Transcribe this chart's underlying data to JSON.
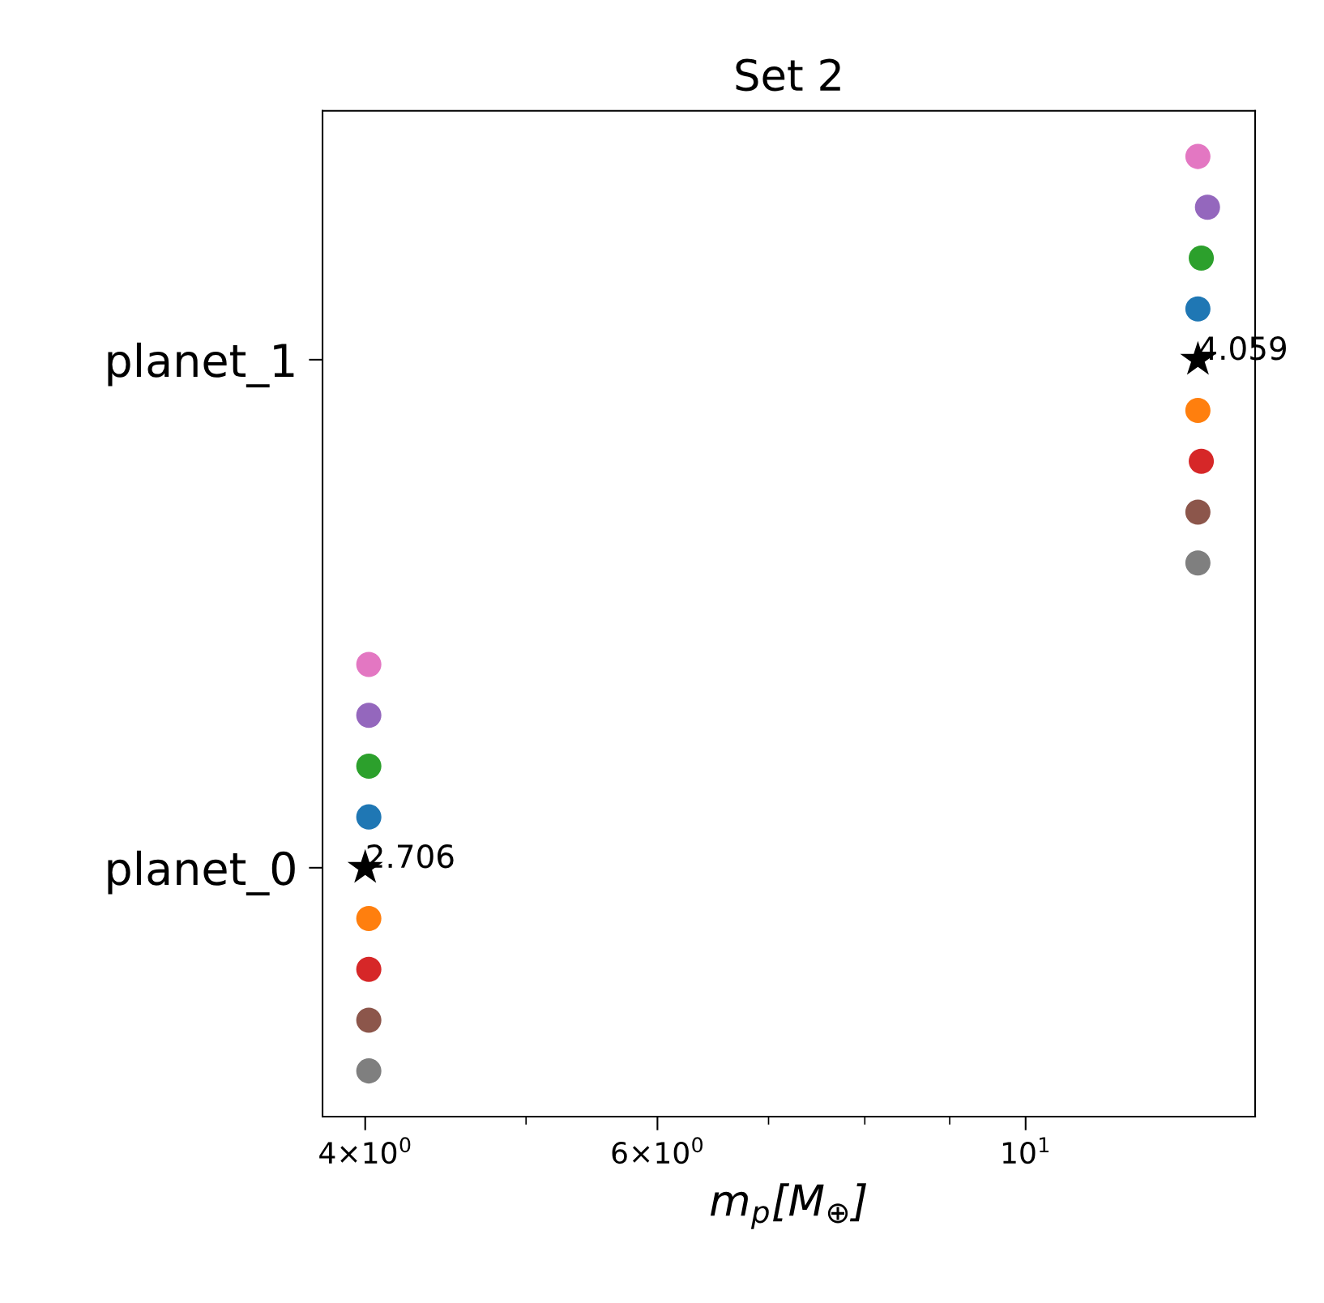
{
  "chart_data": {
    "type": "scatter",
    "title": "Set 2",
    "xlabel": "m$_{p}$[M$_{⊕}$]",
    "log": "x",
    "xlim": [
      3.77,
      13.75
    ],
    "xticks": [
      {
        "value": 4,
        "label": "4×10$^{0}$"
      },
      {
        "value": 6,
        "label": "6×10$^{0}$"
      },
      {
        "value": 10,
        "label": "10$^{1}$"
      }
    ],
    "ylim": [
      -0.49,
      1.49
    ],
    "yticks": [
      {
        "value": 0,
        "label": "planet_0"
      },
      {
        "value": 1,
        "label": "planet_1"
      }
    ],
    "grid": false,
    "legend": false,
    "series": [
      {
        "color": "#e377c2",
        "marker": "circle",
        "x": [
          4.02,
          12.7
        ],
        "values": [
          0.4,
          1.4
        ]
      },
      {
        "color": "#9467bd",
        "marker": "circle",
        "x": [
          4.02,
          12.87
        ],
        "values": [
          0.3,
          1.3
        ]
      },
      {
        "color": "#2ca02c",
        "marker": "circle",
        "x": [
          4.02,
          12.76
        ],
        "values": [
          0.2,
          1.2
        ]
      },
      {
        "color": "#1f77b4",
        "marker": "circle",
        "x": [
          4.02,
          12.7
        ],
        "values": [
          0.1,
          1.1
        ]
      },
      {
        "color": "#ff7f0e",
        "marker": "circle",
        "x": [
          4.02,
          12.7
        ],
        "values": [
          -0.1,
          0.9
        ]
      },
      {
        "color": "#d62728",
        "marker": "circle",
        "x": [
          4.02,
          12.76
        ],
        "values": [
          -0.2,
          0.8
        ]
      },
      {
        "color": "#8c564b",
        "marker": "circle",
        "x": [
          4.02,
          12.7
        ],
        "values": [
          -0.3,
          0.7
        ]
      },
      {
        "color": "#7f7f7f",
        "marker": "circle",
        "x": [
          4.02,
          12.7
        ],
        "values": [
          -0.4,
          0.6
        ]
      },
      {
        "color": "#000000",
        "marker": "star",
        "x": [
          4.0,
          12.7
        ],
        "values": [
          0,
          1
        ]
      }
    ],
    "annotations": [
      {
        "text": "2.706",
        "x": 4.0,
        "y": 0
      },
      {
        "text": "4.059",
        "x": 12.7,
        "y": 1
      }
    ]
  }
}
